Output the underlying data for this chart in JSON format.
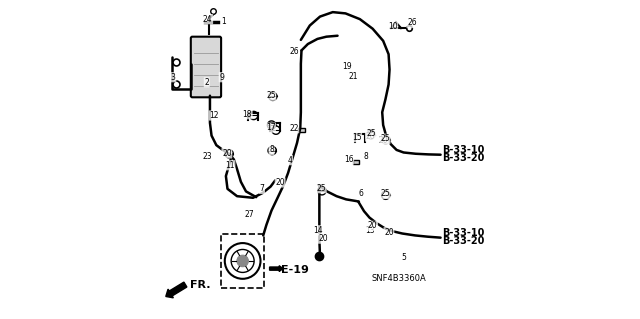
{
  "bg_color": "#ffffff",
  "fig_width": 6.4,
  "fig_height": 3.19,
  "dpi": 100,
  "labels": {
    "B3310_1": "B-33-10",
    "B3320_1": "B-33-20",
    "B3310_2": "B-33-10",
    "B3320_2": "B-33-20",
    "E19": "E-19",
    "FR": "FR.",
    "SNF": "SNF4B3360A"
  }
}
